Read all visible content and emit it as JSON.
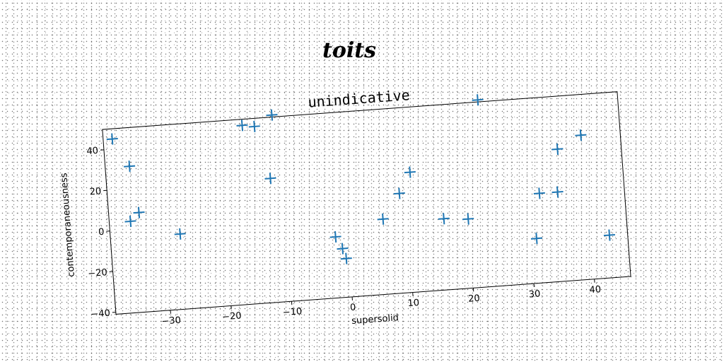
{
  "page": {
    "title": "toits"
  },
  "chart_data": {
    "type": "scatter",
    "title": "unindicative",
    "xlabel": "supersolid",
    "ylabel": "contemporaneousness",
    "xlim": [
      -39,
      46
    ],
    "ylim": [
      -41,
      50
    ],
    "xticks": [
      -30,
      -20,
      -10,
      0,
      10,
      20,
      30,
      40
    ],
    "yticks": [
      -40,
      -20,
      0,
      20,
      40
    ],
    "xtick_labels": [
      "−30",
      "−20",
      "−10",
      "0",
      "10",
      "20",
      "30",
      "40"
    ],
    "ytick_labels": [
      "−40",
      "−20",
      "0",
      "20",
      "40"
    ],
    "marker": "+",
    "grid": false,
    "color": "#1f77b4",
    "x": [
      -37.5,
      -35,
      -34,
      -35.5,
      -27.5,
      -16,
      -14,
      -11,
      -12,
      -2,
      -1,
      -0.5,
      6,
      9,
      11,
      16,
      20,
      23,
      31,
      32,
      35,
      35.5,
      39.5,
      43
    ],
    "y": [
      45,
      31,
      8,
      4,
      -4,
      47,
      46,
      51,
      20,
      -11,
      -17,
      -22,
      -4,
      8,
      18,
      -6,
      -7,
      51,
      -19,
      3,
      3,
      24,
      30,
      -20
    ]
  }
}
